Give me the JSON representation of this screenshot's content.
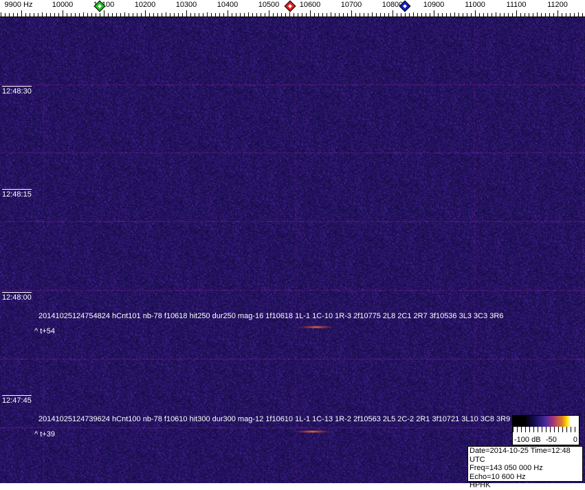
{
  "freq_axis": {
    "labels": [
      "9900 Hz",
      "10000",
      "10100",
      "10200",
      "10300",
      "10400",
      "10500",
      "10600",
      "10700",
      "10800",
      "10900",
      "11000",
      "11100",
      "11200"
    ],
    "values": [
      9900,
      10000,
      10100,
      10200,
      10300,
      10400,
      10500,
      10600,
      10700,
      10800,
      10900,
      11000,
      11100,
      11200
    ]
  },
  "markers": [
    {
      "name": "green-marker",
      "freq": 10100,
      "color": "#20c020"
    },
    {
      "name": "red-marker",
      "freq": 10562,
      "color": "#e02020"
    },
    {
      "name": "blue-marker",
      "freq": 10840,
      "color": "#1020c0"
    }
  ],
  "time_labels": [
    "12:48:30",
    "12:48:15",
    "12:48:00",
    "12:47:45"
  ],
  "detections": [
    {
      "text": "20141025124754824 hCnt101 nb-78 f10618 hit250 dur250 mag-16 1f10618 1L-1 1C-10 1R-3 2f10775 2L8 2C1 2R7 3f10536 3L3 3C3 3R6",
      "offset": "^ t+54"
    },
    {
      "text": "20141025124739624 hCnt100 nb-78 f10610 hit300 dur300 mag-12 1f10610 1L-1 1C-13 1R-2 2f10563 2L5 2C-2 2R1 3f10721 3L10 3C8 3R9",
      "offset": "^ t+39"
    }
  ],
  "colorbar": {
    "labels": [
      "-100 dB",
      "-50",
      "0"
    ]
  },
  "info": {
    "line1": "Date=2014-10-25 Time=12:48 UTC",
    "line2": "Freq=143 050 000 Hz",
    "line3": "Echo=10 600 Hz",
    "line4": "HPHK"
  },
  "colors": {
    "background": "#24156a",
    "gridline": "#6a2a8a"
  }
}
